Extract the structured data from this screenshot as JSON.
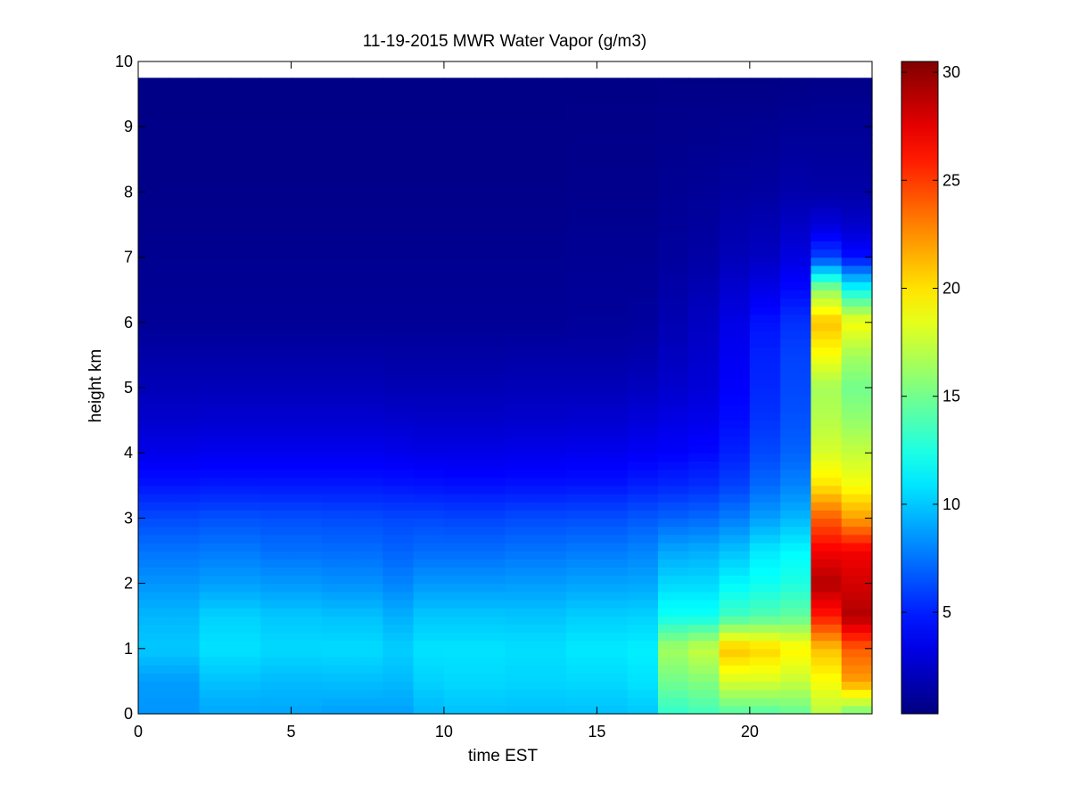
{
  "chart_data": {
    "type": "heatmap",
    "title": "11-19-2015 MWR Water Vapor (g/m3)",
    "xlabel": "time EST",
    "ylabel": "height km",
    "xlim": [
      0,
      24
    ],
    "ylim": [
      0,
      10
    ],
    "xticks": [
      0,
      5,
      10,
      15,
      20
    ],
    "yticks": [
      0,
      1,
      2,
      3,
      4,
      5,
      6,
      7,
      8,
      9,
      10
    ],
    "colorbar": {
      "colormap": "jet",
      "range": [
        0.3,
        30.5
      ],
      "ticks": [
        5,
        10,
        15,
        20,
        25,
        30
      ]
    },
    "grid": false,
    "time_columns": [
      0.5,
      1.5,
      2.5,
      3.5,
      4.5,
      5.5,
      6.5,
      7.5,
      8.5,
      9.5,
      10.5,
      11.5,
      12.5,
      13.5,
      14.5,
      15.5,
      16.5,
      17.5,
      18.5,
      19.5,
      20.5,
      21.5,
      22.5,
      23.5
    ],
    "column_width_hours": 1,
    "data_top_km": 9.75,
    "profiles": [
      {
        "h": [
          0,
          0.5,
          1.0,
          1.5,
          2.0,
          2.5,
          3.0,
          3.5,
          4.0,
          4.5,
          5.0,
          5.5,
          6.0,
          7.0,
          8.0,
          9.75
        ],
        "v": [
          8.5,
          8.7,
          10.0,
          9.5,
          8.5,
          7.5,
          6.3,
          4.7,
          3.5,
          2.6,
          2.0,
          1.5,
          1.0,
          0.8,
          0.6,
          0.5
        ]
      },
      {
        "h": [
          0,
          0.5,
          1.0,
          1.5,
          2.0,
          2.5,
          3.0,
          3.5,
          4.0,
          4.5,
          5.0,
          5.5,
          6.0,
          7.0,
          8.0,
          9.75
        ],
        "v": [
          8.5,
          8.7,
          10.0,
          9.5,
          8.5,
          7.5,
          6.3,
          4.7,
          3.5,
          2.6,
          2.0,
          1.5,
          1.0,
          0.8,
          0.6,
          0.5
        ]
      },
      {
        "h": [
          0,
          0.5,
          1.0,
          1.5,
          2.0,
          2.5,
          3.0,
          3.5,
          4.0,
          4.5,
          5.0,
          5.5,
          6.0,
          7.0,
          8.0,
          9.75
        ],
        "v": [
          9.0,
          9.8,
          10.8,
          10.3,
          8.8,
          7.7,
          6.5,
          4.8,
          3.6,
          2.7,
          2.0,
          1.5,
          1.0,
          0.8,
          0.6,
          0.5
        ]
      },
      {
        "h": [
          0,
          0.5,
          1.0,
          1.5,
          2.0,
          2.5,
          3.0,
          3.5,
          4.0,
          4.5,
          5.0,
          5.5,
          6.0,
          7.0,
          8.0,
          9.75
        ],
        "v": [
          9.0,
          9.8,
          10.8,
          10.3,
          8.8,
          7.7,
          6.5,
          4.8,
          3.6,
          2.7,
          2.0,
          1.5,
          1.0,
          0.8,
          0.6,
          0.5
        ]
      },
      {
        "h": [
          0,
          0.5,
          1.0,
          1.5,
          2.0,
          2.5,
          3.0,
          3.5,
          4.0,
          4.5,
          5.0,
          5.5,
          6.0,
          7.0,
          8.0,
          9.75
        ],
        "v": [
          9.0,
          9.6,
          10.5,
          10.0,
          8.6,
          7.4,
          6.4,
          4.8,
          3.6,
          2.7,
          2.0,
          1.5,
          1.0,
          0.8,
          0.6,
          0.5
        ]
      },
      {
        "h": [
          0,
          0.5,
          1.0,
          1.5,
          2.0,
          2.5,
          3.0,
          3.5,
          4.0,
          4.5,
          5.0,
          5.5,
          6.0,
          7.0,
          8.0,
          9.75
        ],
        "v": [
          9.0,
          9.6,
          10.5,
          10.0,
          8.6,
          7.4,
          6.4,
          4.8,
          3.6,
          2.7,
          2.0,
          1.5,
          1.0,
          0.8,
          0.6,
          0.5
        ]
      },
      {
        "h": [
          0,
          0.5,
          1.0,
          1.5,
          2.0,
          2.5,
          3.0,
          3.5,
          4.0,
          4.5,
          5.0,
          5.5,
          6.0,
          7.0,
          8.0,
          9.75
        ],
        "v": [
          8.8,
          9.7,
          10.6,
          9.8,
          8.4,
          7.3,
          6.3,
          4.8,
          3.6,
          2.7,
          2.0,
          1.5,
          1.0,
          0.8,
          0.6,
          0.5
        ]
      },
      {
        "h": [
          0,
          0.5,
          1.0,
          1.5,
          2.0,
          2.5,
          3.0,
          3.5,
          4.0,
          4.5,
          5.0,
          5.5,
          6.0,
          7.0,
          8.0,
          9.75
        ],
        "v": [
          8.8,
          9.7,
          10.6,
          9.8,
          8.4,
          7.3,
          6.3,
          4.8,
          3.6,
          2.7,
          2.0,
          1.5,
          1.0,
          0.8,
          0.6,
          0.5
        ]
      },
      {
        "h": [
          0,
          0.5,
          1.0,
          1.5,
          2.0,
          2.5,
          3.0,
          3.5,
          4.0,
          4.5,
          5.0,
          5.5,
          6.0,
          7.0,
          8.0,
          9.75
        ],
        "v": [
          8.8,
          9.6,
          10.2,
          9.3,
          8.0,
          7.0,
          6.2,
          4.7,
          3.5,
          2.6,
          1.9,
          1.4,
          1.0,
          0.8,
          0.6,
          0.5
        ]
      },
      {
        "h": [
          0,
          0.5,
          1.0,
          1.5,
          2.0,
          2.5,
          3.0,
          3.5,
          4.0,
          4.5,
          5.0,
          5.5,
          6.0,
          7.0,
          8.0,
          9.75
        ],
        "v": [
          9.5,
          10.3,
          10.8,
          10.0,
          8.6,
          7.3,
          6.2,
          4.6,
          3.4,
          2.5,
          1.9,
          1.4,
          1.0,
          0.8,
          0.6,
          0.5
        ]
      },
      {
        "h": [
          0,
          0.5,
          1.0,
          1.5,
          2.0,
          2.5,
          3.0,
          3.5,
          4.0,
          4.5,
          5.0,
          5.5,
          6.0,
          7.0,
          8.0,
          9.75
        ],
        "v": [
          9.8,
          10.5,
          10.8,
          10.0,
          8.6,
          7.3,
          6.1,
          4.5,
          3.4,
          2.5,
          1.9,
          1.4,
          1.0,
          0.8,
          0.6,
          0.5
        ]
      },
      {
        "h": [
          0,
          0.5,
          1.0,
          1.5,
          2.0,
          2.5,
          3.0,
          3.5,
          4.0,
          4.5,
          5.0,
          5.5,
          6.0,
          7.0,
          8.0,
          9.75
        ],
        "v": [
          9.8,
          10.5,
          10.8,
          10.0,
          8.6,
          7.3,
          6.1,
          4.5,
          3.4,
          2.5,
          1.9,
          1.4,
          1.0,
          0.8,
          0.6,
          0.5
        ]
      },
      {
        "h": [
          0,
          0.5,
          1.0,
          1.5,
          2.0,
          2.5,
          3.0,
          3.5,
          4.0,
          4.5,
          5.0,
          5.5,
          6.0,
          7.0,
          8.0,
          9.75
        ],
        "v": [
          9.7,
          10.4,
          10.7,
          9.9,
          8.7,
          7.5,
          6.3,
          4.6,
          3.5,
          2.6,
          2.0,
          1.5,
          1.0,
          0.8,
          0.6,
          0.5
        ]
      },
      {
        "h": [
          0,
          0.5,
          1.0,
          1.5,
          2.0,
          2.5,
          3.0,
          3.5,
          4.0,
          4.5,
          5.0,
          5.5,
          6.0,
          7.0,
          8.0,
          9.75
        ],
        "v": [
          9.7,
          10.4,
          10.7,
          9.9,
          8.7,
          7.5,
          6.3,
          4.6,
          3.5,
          2.6,
          2.0,
          1.5,
          1.0,
          0.8,
          0.6,
          0.5
        ]
      },
      {
        "h": [
          0,
          0.5,
          1.0,
          1.5,
          2.0,
          2.5,
          3.0,
          3.5,
          4.0,
          4.5,
          5.0,
          5.5,
          6.0,
          7.0,
          8.0,
          9.75
        ],
        "v": [
          9.8,
          10.5,
          11.0,
          10.2,
          8.9,
          7.7,
          6.4,
          4.7,
          3.6,
          2.7,
          2.0,
          1.5,
          1.1,
          0.9,
          0.7,
          0.5
        ]
      },
      {
        "h": [
          0,
          0.5,
          1.0,
          1.5,
          2.0,
          2.5,
          3.0,
          3.5,
          4.0,
          4.5,
          5.0,
          5.5,
          6.0,
          7.0,
          8.0,
          9.75
        ],
        "v": [
          9.8,
          10.5,
          11.0,
          10.2,
          8.9,
          7.7,
          6.4,
          4.7,
          3.6,
          2.7,
          2.0,
          1.5,
          1.1,
          0.9,
          0.7,
          0.5
        ]
      },
      {
        "h": [
          0,
          0.5,
          1.0,
          1.5,
          2.0,
          2.5,
          3.0,
          3.5,
          4.0,
          4.5,
          5.0,
          5.5,
          6.0,
          7.0,
          8.0,
          9.75
        ],
        "v": [
          10.0,
          10.8,
          11.2,
          10.3,
          9.0,
          8.0,
          6.7,
          5.0,
          3.8,
          3.0,
          2.2,
          1.6,
          1.2,
          0.9,
          0.7,
          0.5
        ]
      },
      {
        "h": [
          0,
          0.5,
          1.0,
          1.5,
          2.0,
          2.5,
          3.0,
          3.5,
          4.0,
          4.5,
          5.0,
          5.5,
          6.0,
          7.0,
          8.0,
          9.75
        ],
        "v": [
          13.0,
          15.0,
          16.5,
          12.0,
          10.5,
          9.0,
          7.0,
          5.2,
          4.0,
          3.3,
          2.6,
          2.2,
          1.8,
          1.2,
          0.9,
          0.5
        ]
      },
      {
        "h": [
          0,
          0.5,
          1.0,
          1.5,
          2.0,
          2.5,
          3.0,
          3.5,
          4.0,
          4.5,
          5.0,
          5.5,
          6.0,
          7.0,
          8.0,
          9.75
        ],
        "v": [
          13.5,
          15.5,
          17.5,
          12.0,
          10.5,
          9.2,
          7.2,
          5.4,
          4.3,
          3.5,
          2.9,
          2.6,
          2.3,
          1.4,
          1.0,
          0.5
        ]
      },
      {
        "h": [
          0,
          0.5,
          1.0,
          1.5,
          2.0,
          2.5,
          3.0,
          3.5,
          4.0,
          4.5,
          5.0,
          5.5,
          6.0,
          7.0,
          8.0,
          9.75
        ],
        "v": [
          14.0,
          18.0,
          21.0,
          13.5,
          11.5,
          9.8,
          7.8,
          6.0,
          5.0,
          4.4,
          4.0,
          3.7,
          3.4,
          2.0,
          1.2,
          0.5
        ]
      },
      {
        "h": [
          0,
          0.5,
          1.0,
          1.5,
          2.0,
          2.5,
          3.0,
          3.5,
          4.0,
          4.5,
          5.0,
          5.5,
          6.0,
          7.0,
          8.0,
          9.75
        ],
        "v": [
          14.0,
          18.0,
          20.5,
          14.0,
          12.0,
          11.0,
          8.8,
          7.2,
          6.2,
          5.6,
          5.2,
          5.0,
          4.6,
          2.3,
          1.3,
          0.5
        ]
      },
      {
        "h": [
          0,
          0.5,
          1.0,
          1.5,
          2.0,
          2.5,
          3.0,
          3.5,
          4.0,
          4.5,
          5.0,
          5.5,
          6.0,
          7.0,
          8.0,
          9.75
        ],
        "v": [
          14.5,
          17.5,
          19.5,
          14.5,
          12.5,
          11.5,
          9.5,
          8.0,
          7.0,
          6.5,
          6.2,
          6.0,
          5.5,
          3.2,
          1.6,
          0.5
        ]
      },
      {
        "h": [
          0,
          0.5,
          1.0,
          1.5,
          2.0,
          2.5,
          3.0,
          3.5,
          4.0,
          4.5,
          5.0,
          5.5,
          6.0,
          6.5,
          7.0,
          7.5,
          8.0,
          8.5,
          9.0,
          9.75
        ],
        "v": [
          17.0,
          19.0,
          21.0,
          26.0,
          29.0,
          27.0,
          24.0,
          20.0,
          18.0,
          17.0,
          16.5,
          19.0,
          21.0,
          16.0,
          6.0,
          3.0,
          1.5,
          1.2,
          1.0,
          0.6
        ]
      },
      {
        "h": [
          0,
          0.5,
          1.0,
          1.5,
          2.0,
          2.5,
          3.0,
          3.5,
          4.0,
          4.5,
          5.0,
          5.5,
          6.0,
          6.5,
          7.0,
          7.5,
          8.0,
          8.5,
          9.0,
          9.75
        ],
        "v": [
          15.0,
          22.0,
          24.0,
          29.0,
          28.0,
          27.0,
          22.0,
          19.0,
          17.5,
          16.0,
          15.0,
          16.5,
          19.0,
          12.0,
          4.5,
          2.5,
          1.5,
          1.2,
          1.0,
          0.6
        ]
      }
    ]
  }
}
